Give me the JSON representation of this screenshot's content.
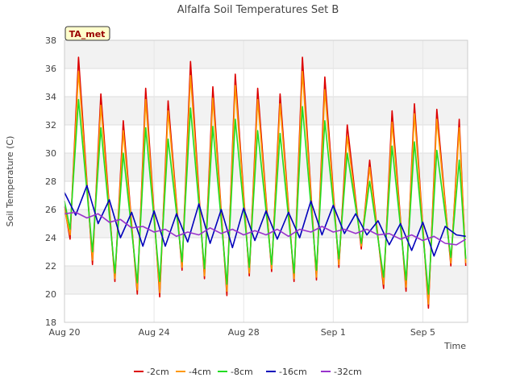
{
  "chart_data": {
    "type": "line",
    "title": "Alfalfa Soil Temperatures Set B",
    "xlabel": "Time",
    "ylabel": "Soil Temperature (C)",
    "badge": "TA_met",
    "ylim": [
      18,
      38
    ],
    "yticks": [
      18,
      20,
      22,
      24,
      26,
      28,
      30,
      32,
      34,
      36,
      38
    ],
    "xlim": [
      "2023-08-20",
      "2023-09-07"
    ],
    "xticks": [
      {
        "date": "2023-08-20",
        "label": "Aug 20"
      },
      {
        "date": "2023-08-24",
        "label": "Aug 24"
      },
      {
        "date": "2023-08-28",
        "label": "Aug 28"
      },
      {
        "date": "2023-09-01",
        "label": "Sep 1"
      },
      {
        "date": "2023-09-05",
        "label": "Sep 5"
      }
    ],
    "grid": true,
    "legend_position": "bottom",
    "series": [
      {
        "name": "-2cm",
        "color": "#dd0000",
        "x": [
          "2023-08-20 00:00",
          "2023-08-20 06:00",
          "2023-08-20 15:00",
          "2023-08-21 06:00",
          "2023-08-21 15:00",
          "2023-08-22 06:00",
          "2023-08-22 15:00",
          "2023-08-23 06:00",
          "2023-08-23 15:00",
          "2023-08-24 06:00",
          "2023-08-24 15:00",
          "2023-08-25 06:00",
          "2023-08-25 15:00",
          "2023-08-26 06:00",
          "2023-08-26 15:00",
          "2023-08-27 06:00",
          "2023-08-27 15:00",
          "2023-08-28 06:00",
          "2023-08-28 15:00",
          "2023-08-29 06:00",
          "2023-08-29 15:00",
          "2023-08-30 06:00",
          "2023-08-30 15:00",
          "2023-08-31 06:00",
          "2023-08-31 15:00",
          "2023-09-01 06:00",
          "2023-09-01 15:00",
          "2023-09-02 06:00",
          "2023-09-02 15:00",
          "2023-09-03 06:00",
          "2023-09-03 15:00",
          "2023-09-04 06:00",
          "2023-09-04 15:00",
          "2023-09-05 06:00",
          "2023-09-05 15:00",
          "2023-09-06 06:00",
          "2023-09-06 15:00",
          "2023-09-06 22:00"
        ],
        "y": [
          26.2,
          23.9,
          36.8,
          22.1,
          34.2,
          20.9,
          32.3,
          20.0,
          34.6,
          19.8,
          33.7,
          21.7,
          36.5,
          21.1,
          34.7,
          19.9,
          35.6,
          21.3,
          34.6,
          21.6,
          34.2,
          20.9,
          36.8,
          21.0,
          35.4,
          21.9,
          32.0,
          23.2,
          29.5,
          20.4,
          33.0,
          20.2,
          33.5,
          19.0,
          33.1,
          22.0,
          32.4,
          22.0
        ]
      },
      {
        "name": "-4cm",
        "color": "#ff9900",
        "x": [
          "2023-08-20 00:00",
          "2023-08-20 06:00",
          "2023-08-20 15:00",
          "2023-08-21 06:00",
          "2023-08-21 15:00",
          "2023-08-22 06:00",
          "2023-08-22 15:00",
          "2023-08-23 06:00",
          "2023-08-23 15:00",
          "2023-08-24 06:00",
          "2023-08-24 15:00",
          "2023-08-25 06:00",
          "2023-08-25 15:00",
          "2023-08-26 06:00",
          "2023-08-26 15:00",
          "2023-08-27 06:00",
          "2023-08-27 15:00",
          "2023-08-28 06:00",
          "2023-08-28 15:00",
          "2023-08-29 06:00",
          "2023-08-29 15:00",
          "2023-08-30 06:00",
          "2023-08-30 15:00",
          "2023-08-31 06:00",
          "2023-08-31 15:00",
          "2023-09-01 06:00",
          "2023-09-01 15:00",
          "2023-09-02 06:00",
          "2023-09-02 15:00",
          "2023-09-03 06:00",
          "2023-09-03 15:00",
          "2023-09-04 06:00",
          "2023-09-04 15:00",
          "2023-09-05 06:00",
          "2023-09-05 15:00",
          "2023-09-06 06:00",
          "2023-09-06 15:00",
          "2023-09-06 22:00"
        ],
        "y": [
          26.0,
          24.2,
          35.8,
          22.4,
          33.4,
          21.1,
          31.6,
          20.3,
          33.8,
          20.1,
          33.0,
          21.9,
          35.5,
          21.3,
          33.9,
          20.2,
          34.8,
          21.5,
          33.8,
          21.8,
          33.5,
          21.1,
          35.8,
          21.2,
          34.5,
          22.1,
          31.2,
          23.4,
          29.0,
          20.7,
          32.2,
          20.5,
          32.8,
          19.3,
          32.4,
          22.2,
          31.8,
          22.2
        ]
      },
      {
        "name": "-8cm",
        "color": "#22dd22",
        "x": [
          "2023-08-20 00:00",
          "2023-08-20 06:00",
          "2023-08-20 15:00",
          "2023-08-21 06:00",
          "2023-08-21 15:00",
          "2023-08-22 06:00",
          "2023-08-22 15:00",
          "2023-08-23 06:00",
          "2023-08-23 15:00",
          "2023-08-24 06:00",
          "2023-08-24 15:00",
          "2023-08-25 06:00",
          "2023-08-25 15:00",
          "2023-08-26 06:00",
          "2023-08-26 15:00",
          "2023-08-27 06:00",
          "2023-08-27 15:00",
          "2023-08-28 06:00",
          "2023-08-28 15:00",
          "2023-08-29 06:00",
          "2023-08-29 15:00",
          "2023-08-30 06:00",
          "2023-08-30 15:00",
          "2023-08-31 06:00",
          "2023-08-31 15:00",
          "2023-09-01 06:00",
          "2023-09-01 15:00",
          "2023-09-02 06:00",
          "2023-09-02 15:00",
          "2023-09-03 06:00",
          "2023-09-03 15:00",
          "2023-09-04 06:00",
          "2023-09-04 15:00",
          "2023-09-05 06:00",
          "2023-09-05 15:00",
          "2023-09-06 06:00",
          "2023-09-06 15:00",
          "2023-09-06 22:00"
        ],
        "y": [
          26.6,
          24.6,
          33.8,
          23.0,
          31.8,
          21.5,
          30.0,
          20.8,
          31.8,
          20.9,
          31.0,
          22.3,
          33.2,
          21.8,
          31.9,
          20.7,
          32.4,
          21.9,
          31.6,
          22.1,
          31.4,
          21.5,
          33.3,
          21.7,
          32.3,
          22.5,
          30.0,
          23.6,
          28.0,
          21.2,
          30.5,
          21.0,
          30.8,
          20.0,
          30.2,
          22.6,
          29.5,
          22.5
        ]
      },
      {
        "name": "-16cm",
        "color": "#0000bb",
        "x": [
          "2023-08-20 00:00",
          "2023-08-20 12:00",
          "2023-08-21 00:00",
          "2023-08-21 12:00",
          "2023-08-22 00:00",
          "2023-08-22 12:00",
          "2023-08-23 00:00",
          "2023-08-23 12:00",
          "2023-08-24 00:00",
          "2023-08-24 12:00",
          "2023-08-25 00:00",
          "2023-08-25 12:00",
          "2023-08-26 00:00",
          "2023-08-26 12:00",
          "2023-08-27 00:00",
          "2023-08-27 12:00",
          "2023-08-28 00:00",
          "2023-08-28 12:00",
          "2023-08-29 00:00",
          "2023-08-29 12:00",
          "2023-08-30 00:00",
          "2023-08-30 12:00",
          "2023-08-31 00:00",
          "2023-08-31 12:00",
          "2023-09-01 00:00",
          "2023-09-01 12:00",
          "2023-09-02 00:00",
          "2023-09-02 12:00",
          "2023-09-03 00:00",
          "2023-09-03 12:00",
          "2023-09-04 00:00",
          "2023-09-04 12:00",
          "2023-09-05 00:00",
          "2023-09-05 12:00",
          "2023-09-06 00:00",
          "2023-09-06 12:00",
          "2023-09-06 22:00"
        ],
        "y": [
          27.2,
          25.6,
          27.7,
          25.0,
          26.7,
          24.0,
          25.8,
          23.4,
          25.9,
          23.4,
          25.7,
          23.7,
          26.4,
          23.6,
          26.0,
          23.3,
          26.1,
          23.8,
          25.9,
          23.9,
          25.8,
          24.0,
          26.6,
          24.2,
          26.3,
          24.3,
          25.7,
          24.2,
          25.2,
          23.5,
          25.0,
          23.1,
          25.1,
          22.7,
          24.8,
          24.2,
          24.1
        ]
      },
      {
        "name": "-32cm",
        "color": "#9933cc",
        "x": [
          "2023-08-20 00:00",
          "2023-08-20 12:00",
          "2023-08-21 00:00",
          "2023-08-21 12:00",
          "2023-08-22 00:00",
          "2023-08-22 12:00",
          "2023-08-23 00:00",
          "2023-08-23 12:00",
          "2023-08-24 00:00",
          "2023-08-24 12:00",
          "2023-08-25 00:00",
          "2023-08-25 12:00",
          "2023-08-26 00:00",
          "2023-08-26 12:00",
          "2023-08-27 00:00",
          "2023-08-27 12:00",
          "2023-08-28 00:00",
          "2023-08-28 12:00",
          "2023-08-29 00:00",
          "2023-08-29 12:00",
          "2023-08-30 00:00",
          "2023-08-30 12:00",
          "2023-08-31 00:00",
          "2023-08-31 12:00",
          "2023-09-01 00:00",
          "2023-09-01 12:00",
          "2023-09-02 00:00",
          "2023-09-02 12:00",
          "2023-09-03 00:00",
          "2023-09-03 12:00",
          "2023-09-04 00:00",
          "2023-09-04 12:00",
          "2023-09-05 00:00",
          "2023-09-05 12:00",
          "2023-09-06 00:00",
          "2023-09-06 12:00",
          "2023-09-06 22:00"
        ],
        "y": [
          25.7,
          25.8,
          25.4,
          25.7,
          25.1,
          25.3,
          24.7,
          24.8,
          24.4,
          24.6,
          24.1,
          24.4,
          24.2,
          24.7,
          24.3,
          24.6,
          24.2,
          24.5,
          24.2,
          24.6,
          24.1,
          24.6,
          24.4,
          24.8,
          24.4,
          24.6,
          24.3,
          24.6,
          24.2,
          24.3,
          23.9,
          24.2,
          23.8,
          24.1,
          23.6,
          23.5,
          23.9
        ]
      }
    ]
  }
}
